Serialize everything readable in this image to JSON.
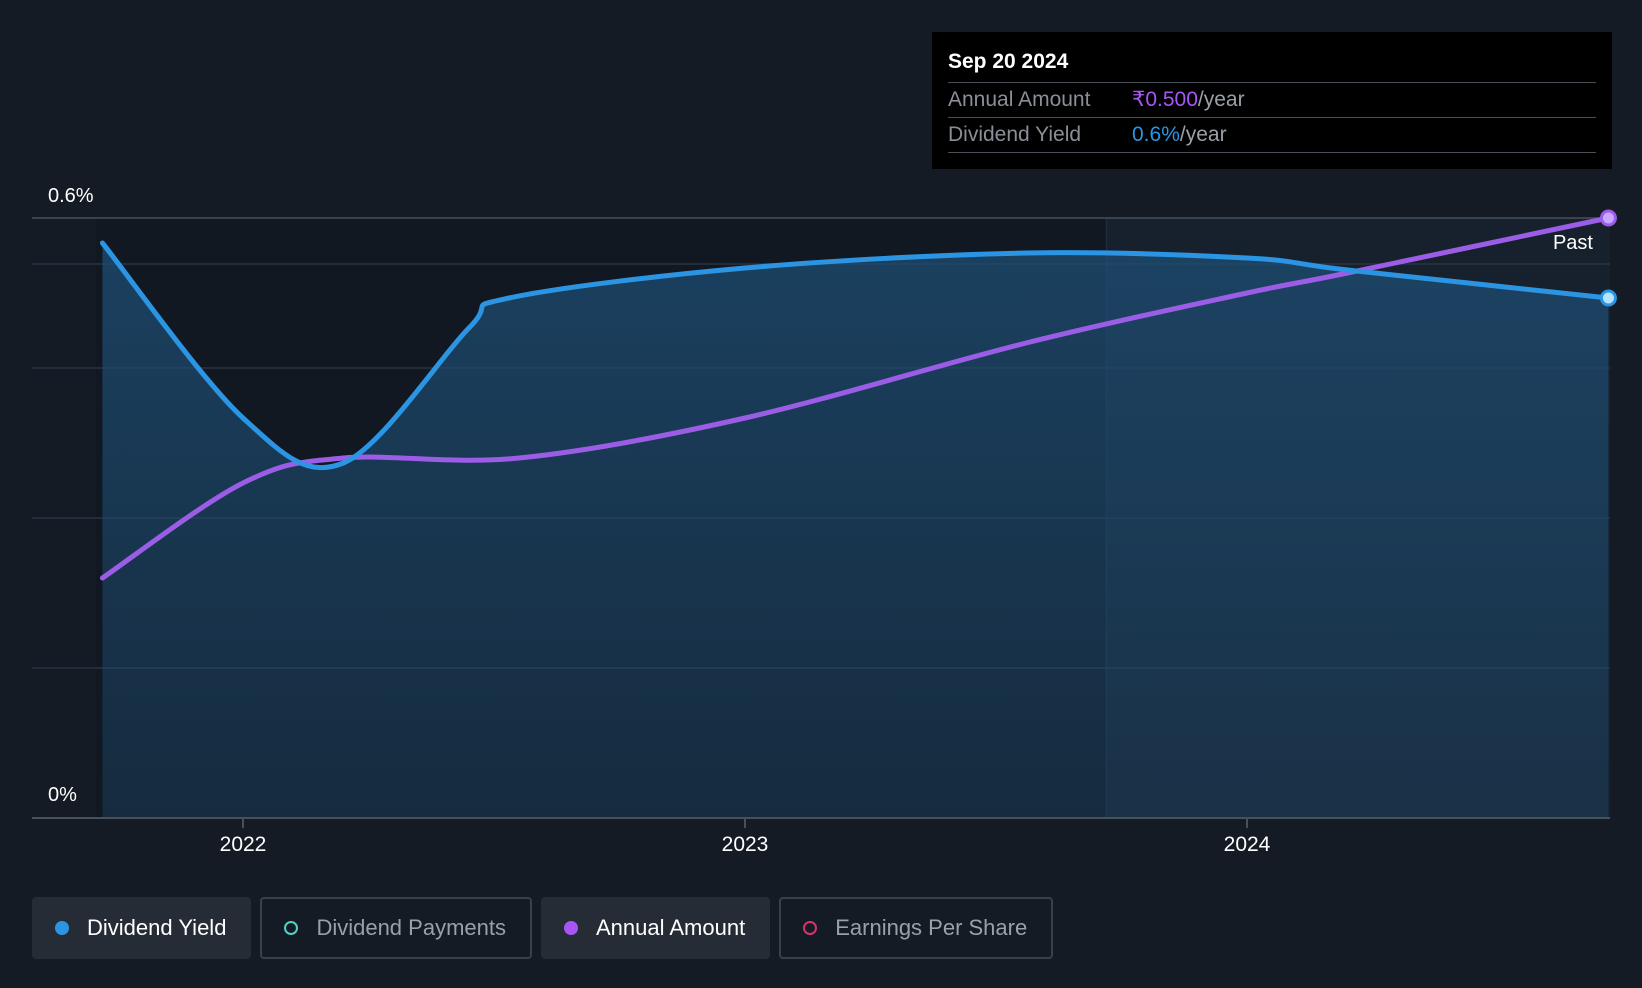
{
  "tooltip": {
    "date": "Sep 20 2024",
    "rows": [
      {
        "label": "Annual Amount",
        "value": "₹0.500",
        "unit": "/year"
      },
      {
        "label": "Dividend Yield",
        "value": "0.6%",
        "unit": "/year"
      }
    ]
  },
  "legend": [
    {
      "label": "Dividend Yield",
      "active": true,
      "color": "#2b95e3",
      "filled": true
    },
    {
      "label": "Dividend Payments",
      "active": false,
      "color": "#4fd1c5",
      "filled": false
    },
    {
      "label": "Annual Amount",
      "active": true,
      "color": "#a855f7",
      "filled": true
    },
    {
      "label": "Earnings Per Share",
      "active": false,
      "color": "#d6336c",
      "filled": false
    }
  ],
  "colors": {
    "yield": "#2b95e3",
    "amount": "#9b5de5",
    "background": "#151b24"
  },
  "chart_data": {
    "type": "line",
    "ylim": [
      0,
      0.6
    ],
    "y_ticks": [
      "0%",
      "0.6%"
    ],
    "x_ticks": [
      "2022",
      "2023",
      "2024"
    ],
    "past_label": "Past",
    "series": [
      {
        "name": "Dividend Yield",
        "x": [
          2021.72,
          2022.0,
          2022.2,
          2022.45,
          2022.53,
          2023.0,
          2023.56,
          2024.0,
          2024.2,
          2024.72
        ],
        "y": [
          0.575,
          0.4,
          0.355,
          0.49,
          0.52,
          0.55,
          0.565,
          0.56,
          0.548,
          0.52
        ]
      },
      {
        "name": "Annual Amount",
        "x": [
          2021.72,
          2022.0,
          2022.2,
          2022.55,
          2023.0,
          2023.56,
          2024.0,
          2024.2,
          2024.72
        ],
        "y": [
          0.24,
          0.335,
          0.36,
          0.36,
          0.4,
          0.475,
          0.525,
          0.545,
          0.6
        ]
      }
    ]
  }
}
